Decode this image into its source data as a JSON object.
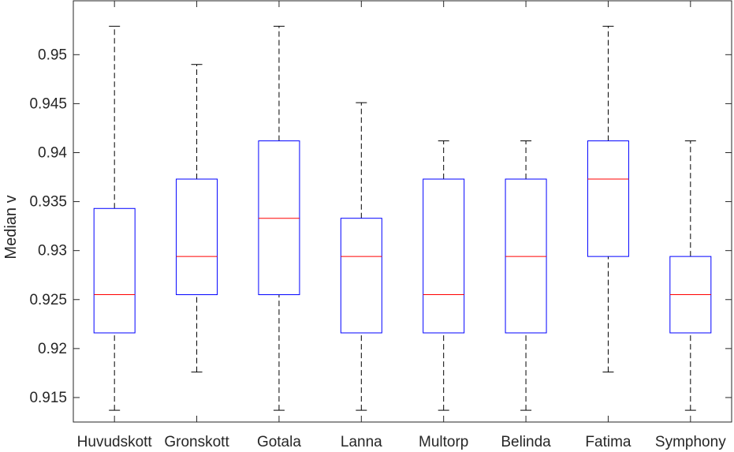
{
  "chart_data": {
    "type": "boxplot",
    "ylabel": "Median v",
    "xlabel": "",
    "title": "",
    "ylim": [
      0.9125,
      0.9555
    ],
    "yticks": [
      0.915,
      0.92,
      0.925,
      0.93,
      0.935,
      0.94,
      0.945,
      0.95
    ],
    "ytick_labels": [
      "0.915",
      "0.92",
      "0.925",
      "0.93",
      "0.935",
      "0.94",
      "0.945",
      "0.95"
    ],
    "grid": false,
    "categories": [
      "Huvudskott",
      "Gronskott",
      "Gotala",
      "Lanna",
      "Multorp",
      "Belinda",
      "Fatima",
      "Symphony"
    ],
    "boxes": [
      {
        "min": 0.9137,
        "q1": 0.9216,
        "median": 0.9255,
        "q3": 0.9343,
        "max": 0.9529
      },
      {
        "min": 0.9176,
        "q1": 0.9255,
        "median": 0.9294,
        "q3": 0.9373,
        "max": 0.949
      },
      {
        "min": 0.9137,
        "q1": 0.9255,
        "median": 0.9333,
        "q3": 0.9412,
        "max": 0.9529
      },
      {
        "min": 0.9137,
        "q1": 0.9216,
        "median": 0.9294,
        "q3": 0.9333,
        "max": 0.9451
      },
      {
        "min": 0.9137,
        "q1": 0.9216,
        "median": 0.9255,
        "q3": 0.9373,
        "max": 0.9412
      },
      {
        "min": 0.9137,
        "q1": 0.9216,
        "median": 0.9294,
        "q3": 0.9373,
        "max": 0.9412
      },
      {
        "min": 0.9176,
        "q1": 0.9294,
        "median": 0.9373,
        "q3": 0.9412,
        "max": 0.9529
      },
      {
        "min": 0.9137,
        "q1": 0.9216,
        "median": 0.9255,
        "q3": 0.9294,
        "max": 0.9412
      }
    ],
    "colors": {
      "box": "#0000ff",
      "median": "#ff0000",
      "whisker": "#000000",
      "axis": "#262626"
    }
  }
}
